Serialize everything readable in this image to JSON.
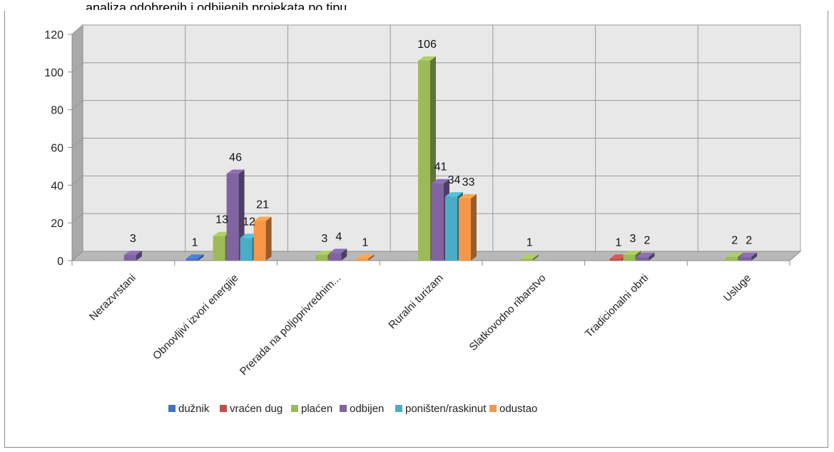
{
  "chart_data": {
    "type": "bar",
    "categories": [
      "Nerazvrstani",
      "Obnovljivi izvori energije",
      "Prerada na poljoprivrednim...",
      "Ruralni turizam",
      "Slatkovodno ribarstvo",
      "Tradicionalni obrti",
      "Usluge"
    ],
    "series": [
      {
        "name": "dužnik",
        "color": "#4472c4",
        "values": [
          0,
          1,
          0,
          0,
          0,
          0,
          0
        ]
      },
      {
        "name": "vraćen dug",
        "color": "#c0504d",
        "values": [
          0,
          0,
          0,
          0,
          0,
          1,
          0
        ]
      },
      {
        "name": "plaćen",
        "color": "#9bbb59",
        "values": [
          0,
          13,
          3,
          106,
          1,
          3,
          2
        ]
      },
      {
        "name": "odbijen",
        "color": "#8064a2",
        "values": [
          3,
          46,
          4,
          41,
          0,
          2,
          2
        ]
      },
      {
        "name": "poništen/raskinut",
        "color": "#4bacc6",
        "values": [
          0,
          12,
          0,
          34,
          0,
          0,
          0
        ]
      },
      {
        "name": "odustao",
        "color": "#f79646",
        "values": [
          0,
          21,
          1,
          33,
          0,
          0,
          0
        ]
      }
    ],
    "ylim": [
      0,
      120
    ],
    "yticks": [
      "0",
      "20",
      "40",
      "60",
      "80",
      "100",
      "120"
    ],
    "grid": true,
    "legend": "bottom",
    "style": "3d-clustered-column"
  },
  "header_fragment": "analiza odobrenih i odbijenih projekata po tipu"
}
